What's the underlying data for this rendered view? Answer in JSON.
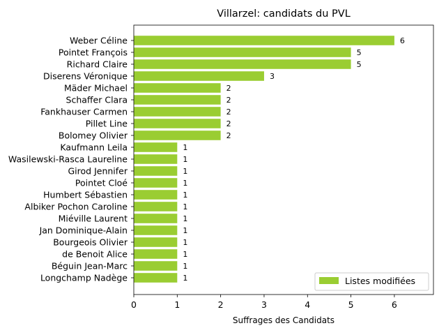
{
  "chart_data": {
    "type": "bar",
    "orientation": "horizontal",
    "title": "Villarzel: candidats du PVL",
    "xlabel": "Suffrages des Candidats",
    "ylabel": "",
    "xlim": [
      0,
      6.9
    ],
    "xticks": [
      "0",
      "1",
      "2",
      "3",
      "4",
      "5",
      "6"
    ],
    "grid": false,
    "legend_position": "lower-right",
    "bar_color": "#9acd32",
    "categories": [
      "Weber Céline",
      "Pointet François",
      "Richard Claire",
      "Diserens Véronique",
      "Mäder Michael",
      "Schaffer Clara",
      "Fankhauser Carmen",
      "Pillet Line",
      "Bolomey Olivier",
      "Kaufmann Leila",
      "Wasilewski-Rasca Laureline",
      "Girod Jennifer",
      "Pointet Cloé",
      "Humbert Sébastien",
      "Albiker Pochon Caroline",
      "Miéville Laurent",
      "Jan Dominique-Alain",
      "Bourgeois Olivier",
      "de Benoit Alice",
      "Béguin Jean-Marc",
      "Longchamp Nadège"
    ],
    "series": [
      {
        "name": "Listes modifiées",
        "values": [
          6,
          5,
          5,
          3,
          2,
          2,
          2,
          2,
          2,
          1,
          1,
          1,
          1,
          1,
          1,
          1,
          1,
          1,
          1,
          1,
          1
        ]
      }
    ]
  }
}
